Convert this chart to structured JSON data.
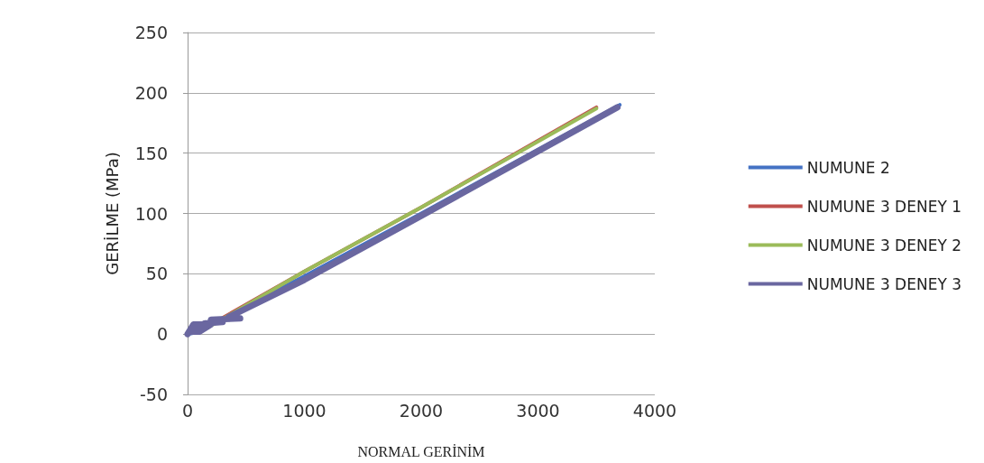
{
  "chart_data": {
    "type": "line",
    "xlabel": "NORMAL GERİNİM",
    "ylabel": "GERİLME (MPa)",
    "xlim": [
      0,
      4000
    ],
    "xticks": [
      0,
      1000,
      2000,
      3000,
      4000
    ],
    "ylim": [
      -50,
      250
    ],
    "yticks": [
      -50,
      0,
      50,
      100,
      150,
      200,
      250
    ],
    "grid": "y",
    "legend": "right",
    "marker": "none",
    "line_style": "solid",
    "series": [
      {
        "name": "NUMUNE 2",
        "color": "#4472c4",
        "x": [
          0,
          100,
          250,
          1000,
          2000,
          3700
        ],
        "values": [
          0,
          2,
          10,
          48,
          100,
          190
        ]
      },
      {
        "name": "NUMUNE 3 DENEY 1",
        "color": "#c0504d",
        "x": [
          0,
          200,
          1000,
          2000,
          3500
        ],
        "values": [
          0,
          8,
          52,
          105,
          188
        ]
      },
      {
        "name": "NUMUNE 3 DENEY 2",
        "color": "#9bbb59",
        "x": [
          0,
          220,
          1000,
          2000,
          3500
        ],
        "values": [
          0,
          8,
          52,
          105,
          187
        ]
      },
      {
        "name": "NUMUNE 3 DENEY 3",
        "color": "#6a67a0",
        "x": [
          0,
          50,
          200,
          100,
          20,
          150,
          300,
          200,
          450,
          350,
          1000,
          2000,
          3680
        ],
        "values": [
          0,
          8,
          8,
          2,
          2,
          9,
          10,
          12,
          13,
          14,
          45,
          98,
          188
        ]
      }
    ]
  }
}
